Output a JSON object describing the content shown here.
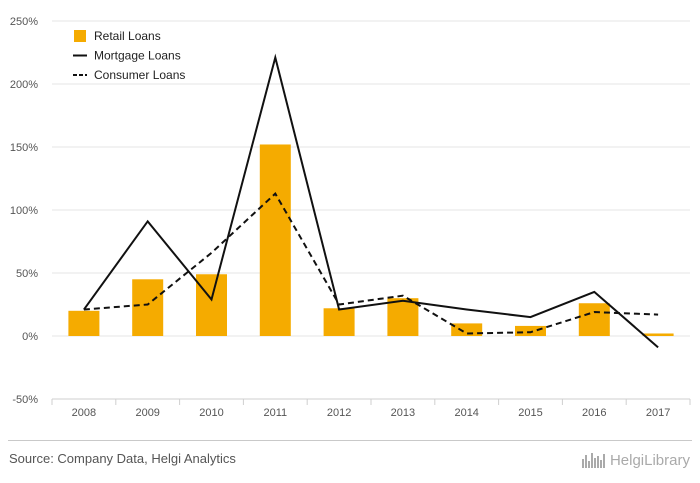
{
  "chart_data": {
    "type": "bar",
    "categories": [
      "2008",
      "2009",
      "2010",
      "2011",
      "2012",
      "2013",
      "2014",
      "2015",
      "2016",
      "2017"
    ],
    "series": [
      {
        "name": "Retail Loans",
        "type": "bar",
        "style": "solid",
        "color": "#f5ab00",
        "values": [
          20,
          45,
          49,
          152,
          22,
          30,
          10,
          8,
          26,
          2
        ]
      },
      {
        "name": "Mortgage Loans",
        "type": "line",
        "style": "solid",
        "color": "#111111",
        "values": [
          21,
          91,
          29,
          221,
          21,
          28,
          21,
          15,
          35,
          -9
        ]
      },
      {
        "name": "Consumer Loans",
        "type": "line",
        "style": "dashed",
        "color": "#111111",
        "values": [
          21,
          25,
          66,
          113,
          25,
          32,
          2,
          3,
          19,
          17
        ]
      }
    ],
    "yticks": [
      "250%",
      "200%",
      "150%",
      "100%",
      "50%",
      "0%",
      "-50%"
    ],
    "ytick_values": [
      250,
      200,
      150,
      100,
      50,
      0,
      -50
    ],
    "ylim": [
      -50,
      250
    ],
    "grid": true,
    "legend_position": "top-left"
  },
  "footer": {
    "source": "Source: Company Data, Helgi Analytics",
    "logo_text": "HelgiLibrary"
  }
}
